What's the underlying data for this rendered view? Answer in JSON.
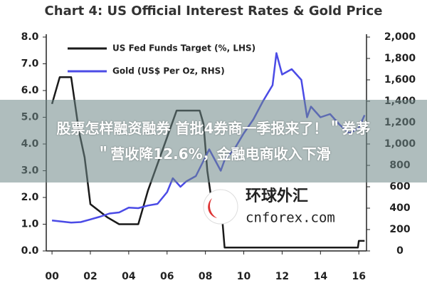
{
  "chart_data": {
    "type": "line",
    "title": "Chart 4: US Official Interest Rates & Gold Price",
    "xlim": [
      -0.3,
      16.4
    ],
    "xticks": [
      {
        "value": 0,
        "label": "00"
      },
      {
        "value": 2,
        "label": "02"
      },
      {
        "value": 4,
        "label": "04"
      },
      {
        "value": 6,
        "label": "06"
      },
      {
        "value": 8,
        "label": "08"
      },
      {
        "value": 10,
        "label": "10"
      },
      {
        "value": 12,
        "label": "12"
      },
      {
        "value": 14,
        "label": "14"
      },
      {
        "value": 16,
        "label": "16"
      }
    ],
    "ylim": [
      0,
      8
    ],
    "yticks": [
      {
        "value": 0,
        "label": "0.0"
      },
      {
        "value": 1,
        "label": "1.0"
      },
      {
        "value": 2,
        "label": "2.0"
      },
      {
        "value": 3,
        "label": "3.0"
      },
      {
        "value": 4,
        "label": "4.0"
      },
      {
        "value": 5,
        "label": "5.0"
      },
      {
        "value": 6,
        "label": "6.0"
      },
      {
        "value": 7,
        "label": "7.0"
      },
      {
        "value": 8,
        "label": "8.0"
      }
    ],
    "y2lim": [
      0,
      2000
    ],
    "y2ticks": [
      0,
      200,
      400,
      600,
      800,
      {
        "value": 1000,
        "label": "1,000"
      },
      {
        "value": 1200,
        "label": "1,200"
      },
      {
        "value": 1400,
        "label": "1,400"
      },
      {
        "value": 1600,
        "label": "1,600"
      },
      {
        "value": 1800,
        "label": "1,800"
      },
      {
        "value": 2000,
        "label": "2,000"
      }
    ],
    "grid": false,
    "legend": "upper left",
    "series": [
      {
        "name": "US Fed Funds Target (%, LHS)",
        "color": "#1a1a1a",
        "x": [
          0,
          0.4,
          1.0,
          1.1,
          1.4,
          1.7,
          2.0,
          2.9,
          3.5,
          4.5,
          4.7,
          5.0,
          5.5,
          6.0,
          6.5,
          7.7,
          7.9,
          8.1,
          8.3,
          8.9,
          9.0,
          15.95,
          16.0,
          16.3
        ],
        "values": [
          5.5,
          6.5,
          6.5,
          6.0,
          4.5,
          3.5,
          1.75,
          1.25,
          1.0,
          1.0,
          1.5,
          2.25,
          3.25,
          4.25,
          5.25,
          5.25,
          4.75,
          3.0,
          2.0,
          1.0,
          0.125,
          0.125,
          0.375,
          0.375
        ]
      },
      {
        "name": "Gold (US$ Per Oz, RHS)",
        "color": "#4b4be6",
        "axis": "y2",
        "x": [
          0,
          0.5,
          1,
          1.5,
          2,
          2.5,
          3,
          3.5,
          4,
          4.5,
          5,
          5.5,
          6,
          6.3,
          6.7,
          7,
          7.5,
          8,
          8.2,
          8.8,
          9,
          9.5,
          10,
          10.5,
          11,
          11.5,
          11.7,
          12,
          12.5,
          13,
          13.3,
          13.5,
          14,
          14.5,
          15,
          15.5,
          16,
          16.3
        ],
        "values": [
          285,
          275,
          265,
          270,
          295,
          320,
          350,
          360,
          405,
          400,
          425,
          440,
          550,
          680,
          600,
          650,
          700,
          880,
          950,
          750,
          850,
          950,
          1100,
          1230,
          1400,
          1550,
          1850,
          1650,
          1700,
          1600,
          1250,
          1350,
          1250,
          1280,
          1180,
          1100,
          1150,
          1270
        ]
      }
    ]
  },
  "overlay": {
    "headline": [
      "股票怎样融资融券 首批4券商一季报来了！＂券茅",
      "＂营收降12.6%，金融电商收入下滑"
    ],
    "watermark": {
      "name": "环球外汇",
      "site": "cnforex.com"
    }
  }
}
